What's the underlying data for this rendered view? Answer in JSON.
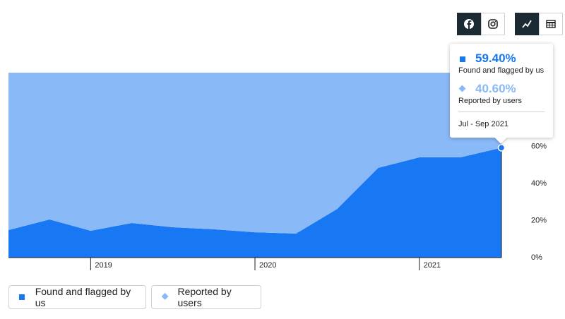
{
  "chart_data": {
    "type": "stacked-area",
    "x": [
      2018.5,
      2018.75,
      2019,
      2019.25,
      2019.5,
      2019.75,
      2020,
      2020.25,
      2020.5,
      2020.75,
      2021,
      2021.25,
      2021.5
    ],
    "xlim": [
      2018.5,
      2021.5
    ],
    "xticks": [
      2019,
      2020,
      2021
    ],
    "ylim": [
      0,
      100
    ],
    "yticks": [
      {
        "value": 0,
        "label": "0%"
      },
      {
        "value": 20,
        "label": "20%"
      },
      {
        "value": 40,
        "label": "40%"
      },
      {
        "value": 60,
        "label": "60%"
      }
    ],
    "series": [
      {
        "name": "Found and flagged by us",
        "color": "#1877f2",
        "values": [
          14.9,
          20.6,
          14.5,
          18.7,
          16.4,
          15.3,
          13.7,
          13.0,
          26.3,
          48.5,
          54.2,
          54.2,
          59.4
        ]
      },
      {
        "name": "Reported by users",
        "color": "#8ab9f7",
        "values": [
          85.1,
          79.4,
          85.5,
          81.3,
          83.6,
          84.7,
          86.3,
          87.0,
          73.7,
          51.5,
          45.8,
          45.8,
          40.6
        ]
      }
    ],
    "tooltip": {
      "value_labels": [
        "59.40%",
        "40.60%"
      ],
      "period": "Jul - Sep 2021"
    }
  }
}
